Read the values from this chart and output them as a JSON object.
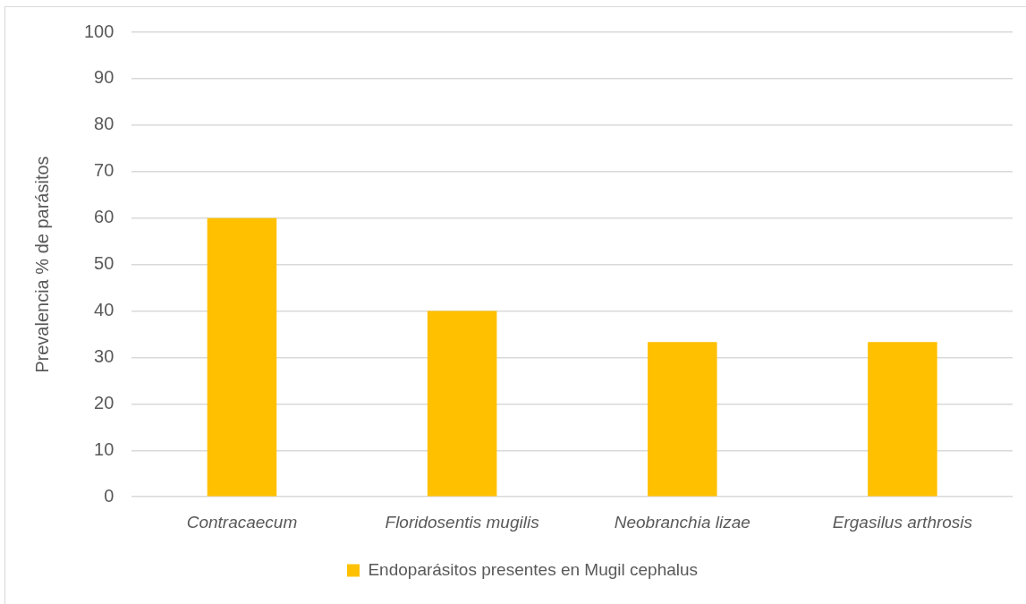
{
  "chart_data": {
    "type": "bar",
    "categories": [
      "Contracaecum",
      "Floridosentis mugilis",
      "Neobranchia lizae",
      "Ergasilus arthrosis"
    ],
    "series": [
      {
        "name": "Endoparásitos presentes en Mugil cephalus",
        "color": "#ffc000",
        "values": [
          60,
          40,
          33.3,
          33.3
        ]
      }
    ],
    "ylabel": "Prevalencia % de parásitos",
    "ylim": [
      0,
      100
    ],
    "yticks": [
      0,
      10,
      20,
      30,
      40,
      50,
      60,
      70,
      80,
      90,
      100
    ],
    "grid": "y",
    "legend": "bottom"
  }
}
